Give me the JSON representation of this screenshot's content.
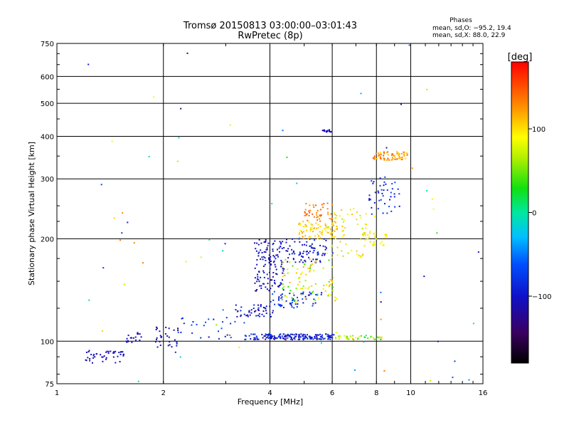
{
  "header": {
    "title_line1": "Tromsø 20150813 03:00:00–03:01:43",
    "title_line2": "RwPretec (8p)"
  },
  "phase_info": {
    "heading": "Phases",
    "line1": "mean, sd,O: −95.2, 19.4",
    "line2": "mean, sd,X:  88.0, 22.9"
  },
  "colorbar": {
    "unit": "[deg]",
    "ticks": [
      "100",
      "0",
      "−100"
    ],
    "tick_values": [
      100,
      0,
      -100
    ],
    "range": [
      -180,
      180
    ]
  },
  "chart_data": {
    "type": "scatter",
    "title": "Tromsø 20150813 03:00:00–03:01:43",
    "subtitle": "RwPretec (8p)",
    "xlabel": "Frequency [MHz]",
    "ylabel": "Stationary phase Virtual Height [km]",
    "xscale": "log",
    "yscale": "log",
    "xlim": [
      1,
      16
    ],
    "ylim": [
      75,
      750
    ],
    "xticks": [
      1,
      2,
      4,
      6,
      8,
      10,
      16
    ],
    "xtick_labels": [
      "1",
      "2",
      "4",
      "6",
      "8",
      "10",
      "16"
    ],
    "yticks": [
      75,
      100,
      200,
      300,
      400,
      500,
      600,
      750
    ],
    "ytick_labels": [
      "75",
      "100",
      "200",
      "300",
      "400",
      "500",
      "600",
      "750"
    ],
    "grid": true,
    "color_by": "phase [deg]",
    "clusters": [
      {
        "f": [
          1.2,
          1.55
        ],
        "h": [
          86,
          94
        ],
        "phase": [
          -120,
          -90
        ],
        "n": 45
      },
      {
        "f": [
          1.55,
          1.75
        ],
        "h": [
          99,
          106
        ],
        "phase": [
          -120,
          -100
        ],
        "n": 18
      },
      {
        "f": [
          1.9,
          2.2
        ],
        "h": [
          96,
          110
        ],
        "phase": [
          -130,
          -95
        ],
        "n": 30
      },
      {
        "f": [
          2.2,
          3.2
        ],
        "h": [
          101,
          118
        ],
        "phase": [
          -110,
          -60
        ],
        "n": 26
      },
      {
        "f": [
          3.2,
          4.1
        ],
        "h": [
          118,
          128
        ],
        "phase": [
          -120,
          -85
        ],
        "n": 48
      },
      {
        "f": [
          3.4,
          6.1
        ],
        "h": [
          101,
          105
        ],
        "phase": [
          -120,
          -70
        ],
        "n": 170
      },
      {
        "f": [
          6.1,
          8.4
        ],
        "h": [
          101,
          104
        ],
        "phase": [
          20,
          110
        ],
        "n": 40
      },
      {
        "f": [
          4.0,
          5.6
        ],
        "h": [
          125,
          140
        ],
        "phase": [
          -110,
          -60
        ],
        "n": 60
      },
      {
        "f": [
          3.6,
          4.4
        ],
        "h": [
          140,
          200
        ],
        "phase": [
          -125,
          -85
        ],
        "n": 130
      },
      {
        "f": [
          4.4,
          5.8
        ],
        "h": [
          170,
          200
        ],
        "phase": [
          -115,
          -80
        ],
        "n": 80
      },
      {
        "f": [
          4.3,
          6.2
        ],
        "h": [
          130,
          175
        ],
        "phase": [
          30,
          120
        ],
        "n": 90
      },
      {
        "f": [
          4.8,
          6.2
        ],
        "h": [
          200,
          225
        ],
        "phase": [
          90,
          125
        ],
        "n": 80
      },
      {
        "f": [
          5.0,
          6.0
        ],
        "h": [
          225,
          255
        ],
        "phase": [
          120,
          150
        ],
        "n": 45
      },
      {
        "f": [
          5.8,
          7.5
        ],
        "h": [
          175,
          250
        ],
        "phase": [
          60,
          115
        ],
        "n": 60
      },
      {
        "f": [
          7.2,
          8.6
        ],
        "h": [
          190,
          210
        ],
        "phase": [
          70,
          110
        ],
        "n": 35
      },
      {
        "f": [
          7.6,
          9.3
        ],
        "h": [
          235,
          305
        ],
        "phase": [
          -110,
          -60
        ],
        "n": 45
      },
      {
        "f": [
          7.8,
          9.8
        ],
        "h": [
          340,
          360
        ],
        "phase": [
          100,
          150
        ],
        "n": 70
      },
      {
        "f": [
          5.6,
          6.0
        ],
        "h": [
          412,
          418
        ],
        "phase": [
          -120,
          -100
        ],
        "n": 16
      },
      {
        "f": [
          1.2,
          16
        ],
        "h": [
          75,
          750
        ],
        "phase": [
          -140,
          140
        ],
        "n": 70
      }
    ]
  }
}
